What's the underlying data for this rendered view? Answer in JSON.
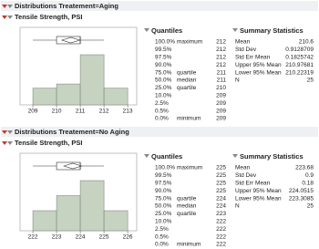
{
  "sections": [
    {
      "title": "Distributions Treatement=Aging",
      "variable": "Tensile Strength, PSI",
      "histogram": {
        "bins": [
          209,
          210,
          211,
          212,
          213
        ],
        "counts": [
          4,
          5,
          12,
          4
        ],
        "xlim": [
          208.46,
          213.38
        ],
        "xticks": [
          209,
          210,
          211,
          212,
          213
        ],
        "color": "#c5d3c0"
      },
      "quantiles": {
        "title": "Quantiles",
        "rows": [
          {
            "level": "100.0%",
            "label": "maximum",
            "value": 212
          },
          {
            "level": "99.5%",
            "value": 212
          },
          {
            "level": "97.5%",
            "value": 212
          },
          {
            "level": "90.0%",
            "value": 212
          },
          {
            "level": "75.0%",
            "label": "quartile",
            "value": 211
          },
          {
            "level": "50.0%",
            "label": "median",
            "value": 211
          },
          {
            "level": "25.0%",
            "label": "quartile",
            "value": 210
          },
          {
            "level": "10.0%",
            "value": 209
          },
          {
            "level": "2.5%",
            "value": 209
          },
          {
            "level": "0.5%",
            "value": 209
          },
          {
            "level": "0.0%",
            "label": "minimum",
            "value": 209
          }
        ]
      },
      "summary": {
        "title": "Summary Statistics",
        "rows": [
          {
            "label": "Mean",
            "value": 210.6
          },
          {
            "label": "Std Dev",
            "value": 0.9128709
          },
          {
            "label": "Std Err Mean",
            "value": 0.1825742
          },
          {
            "label": "Upper 95% Mean",
            "value": 210.97681
          },
          {
            "label": "Lower 95% Mean",
            "value": 210.22319
          },
          {
            "label": "N",
            "value": 25
          }
        ]
      }
    },
    {
      "title": "Distributions Treatement=No Aging",
      "variable": "Tensile Strength, PSI",
      "histogram": {
        "bins": [
          222,
          223,
          224,
          225,
          226
        ],
        "counts": [
          4,
          7,
          10,
          4
        ],
        "xlim": [
          221.46,
          226.38
        ],
        "xticks": [
          222,
          223,
          224,
          225,
          226
        ],
        "color": "#c5d3c0"
      },
      "quantiles": {
        "title": "Quantiles",
        "rows": [
          {
            "level": "100.0%",
            "label": "maximum",
            "value": 225
          },
          {
            "level": "99.5%",
            "value": 225
          },
          {
            "level": "97.5%",
            "value": 225
          },
          {
            "level": "90.0%",
            "value": 225
          },
          {
            "level": "75.0%",
            "label": "quartile",
            "value": 224
          },
          {
            "level": "50.0%",
            "label": "median",
            "value": 224
          },
          {
            "level": "25.0%",
            "label": "quartile",
            "value": 223
          },
          {
            "level": "10.0%",
            "value": 222
          },
          {
            "level": "2.5%",
            "value": 222
          },
          {
            "level": "0.5%",
            "value": 222
          },
          {
            "level": "0.0%",
            "label": "minimum",
            "value": 222
          }
        ]
      },
      "summary": {
        "title": "Summary Statistics",
        "rows": [
          {
            "label": "Mean",
            "value": 223.68
          },
          {
            "label": "Std Dev",
            "value": 0.9
          },
          {
            "label": "Std Err Mean",
            "value": 0.18
          },
          {
            "label": "Upper 95% Mean",
            "value": 224.0515
          },
          {
            "label": "Lower 95% Mean",
            "value": 223.3085
          },
          {
            "label": "N",
            "value": 25
          }
        ]
      }
    }
  ]
}
